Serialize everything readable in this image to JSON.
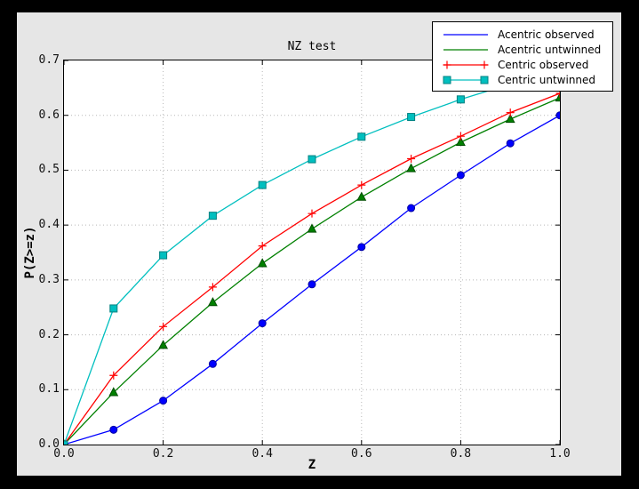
{
  "window": {
    "border_color": "#000000",
    "canvas_color": "#e6e6e6"
  },
  "chart_data": {
    "type": "line",
    "title": "NZ test",
    "xlabel": "Z",
    "ylabel": "P(Z>=z)",
    "xlim": [
      0.0,
      1.0
    ],
    "ylim": [
      0.0,
      0.7
    ],
    "xticks": [
      0.0,
      0.2,
      0.4,
      0.6,
      0.8,
      1.0
    ],
    "yticks": [
      0.0,
      0.1,
      0.2,
      0.3,
      0.4,
      0.5,
      0.6,
      0.7
    ],
    "grid": true,
    "grid_color": "#b8b8b8",
    "plot_bg": "#ffffff",
    "legend_position": "upper right",
    "x": [
      0.0,
      0.1,
      0.2,
      0.3,
      0.4,
      0.5,
      0.6,
      0.7,
      0.8,
      0.9,
      1.0
    ],
    "series": [
      {
        "name": "Acentric observed",
        "color": "#0000ff",
        "marker": "circle",
        "marker_edge": "#0000a0",
        "legend_markers": false,
        "values": [
          0.0,
          0.027,
          0.08,
          0.147,
          0.221,
          0.292,
          0.36,
          0.431,
          0.491,
          0.549,
          0.6
        ]
      },
      {
        "name": "Acentric untwinned",
        "color": "#008000",
        "marker": "triangle-up",
        "marker_edge": "#004d00",
        "legend_markers": false,
        "values": [
          0.0,
          0.095,
          0.181,
          0.259,
          0.33,
          0.393,
          0.451,
          0.503,
          0.551,
          0.593,
          0.632
        ]
      },
      {
        "name": "Centric observed",
        "color": "#ff0000",
        "marker": "plus",
        "marker_edge": "#ff0000",
        "legend_markers": true,
        "values": [
          0.0,
          0.126,
          0.215,
          0.287,
          0.362,
          0.421,
          0.473,
          0.521,
          0.562,
          0.605,
          0.64
        ]
      },
      {
        "name": "Centric untwinned",
        "color": "#00bfbf",
        "marker": "square",
        "marker_edge": "#008080",
        "legend_markers": true,
        "values": [
          0.0,
          0.248,
          0.345,
          0.417,
          0.473,
          0.52,
          0.561,
          0.597,
          0.629,
          0.657,
          0.683
        ]
      }
    ]
  }
}
